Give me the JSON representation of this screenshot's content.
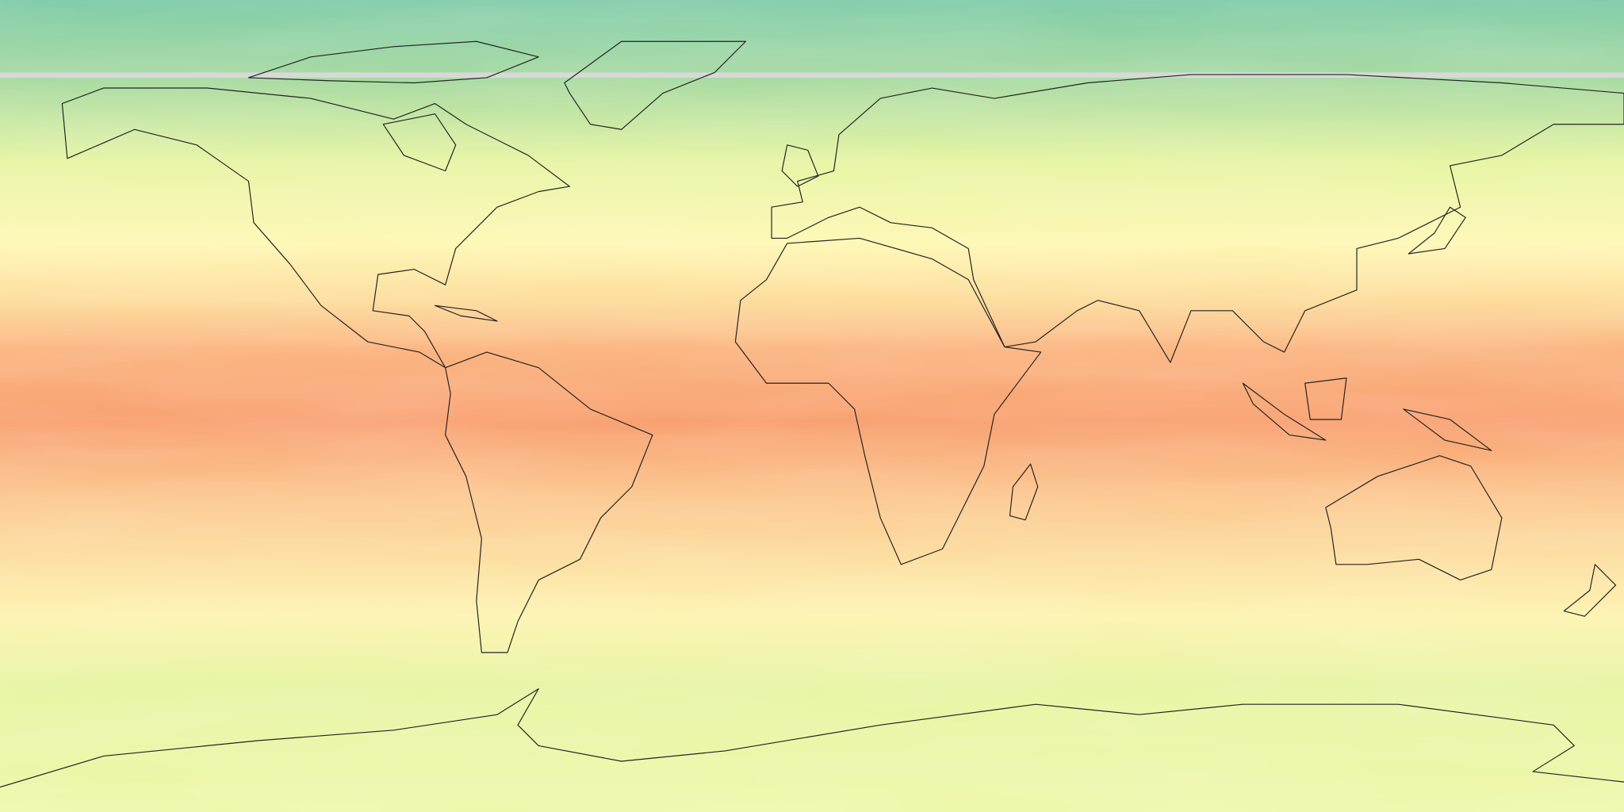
{
  "map": {
    "projection": "equirectangular",
    "extent": {
      "lon": [
        -180,
        180
      ],
      "lat": [
        -90,
        90
      ]
    },
    "layers": [
      "scalar-field",
      "coastlines"
    ],
    "colormap": {
      "name": "Spectral-like",
      "stops": [
        "#7ccaa6",
        "#a5d99e",
        "#e6f4a0",
        "#fef7b2",
        "#fddb98",
        "#fbb27c",
        "#f89d6b",
        "#fcc88d",
        "#fdf3ae",
        "#e6f4a0",
        "#eef7a8"
      ]
    },
    "missing_data_color": "#d8d8d8",
    "coastline_color": "#222222"
  }
}
